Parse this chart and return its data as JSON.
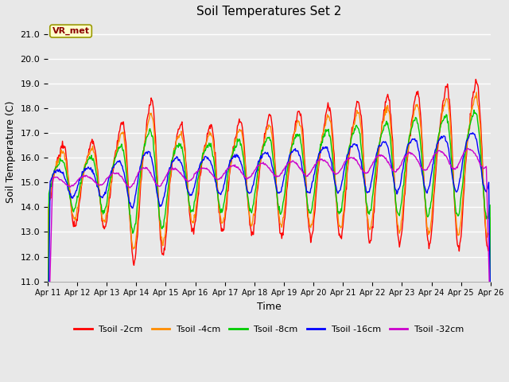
{
  "title": "Soil Temperatures Set 2",
  "xlabel": "Time",
  "ylabel": "Soil Temperature (C)",
  "ylim": [
    11.0,
    21.5
  ],
  "yticks": [
    11.0,
    12.0,
    13.0,
    14.0,
    15.0,
    16.0,
    17.0,
    18.0,
    19.0,
    20.0,
    21.0
  ],
  "xtick_labels": [
    "Apr 11",
    "Apr 12",
    "Apr 13",
    "Apr 14",
    "Apr 15",
    "Apr 16",
    "Apr 17",
    "Apr 18",
    "Apr 19",
    "Apr 20",
    "Apr 21",
    "Apr 22",
    "Apr 23",
    "Apr 24",
    "Apr 25",
    "Apr 26"
  ],
  "series_names": [
    "Tsoil -2cm",
    "Tsoil -4cm",
    "Tsoil -8cm",
    "Tsoil -16cm",
    "Tsoil -32cm"
  ],
  "colors": [
    "#ff0000",
    "#ff8c00",
    "#00cc00",
    "#0000ff",
    "#cc00cc"
  ],
  "lw": 1.0,
  "annotation_text": "VR_met",
  "annotation_bg": "#ffffcc",
  "annotation_edge": "#999900",
  "annotation_fg": "#8b0000",
  "plot_bg": "#e8e8e8",
  "fig_bg": "#e8e8e8",
  "grid_color": "#ffffff",
  "figsize": [
    6.4,
    4.8
  ],
  "dpi": 100
}
